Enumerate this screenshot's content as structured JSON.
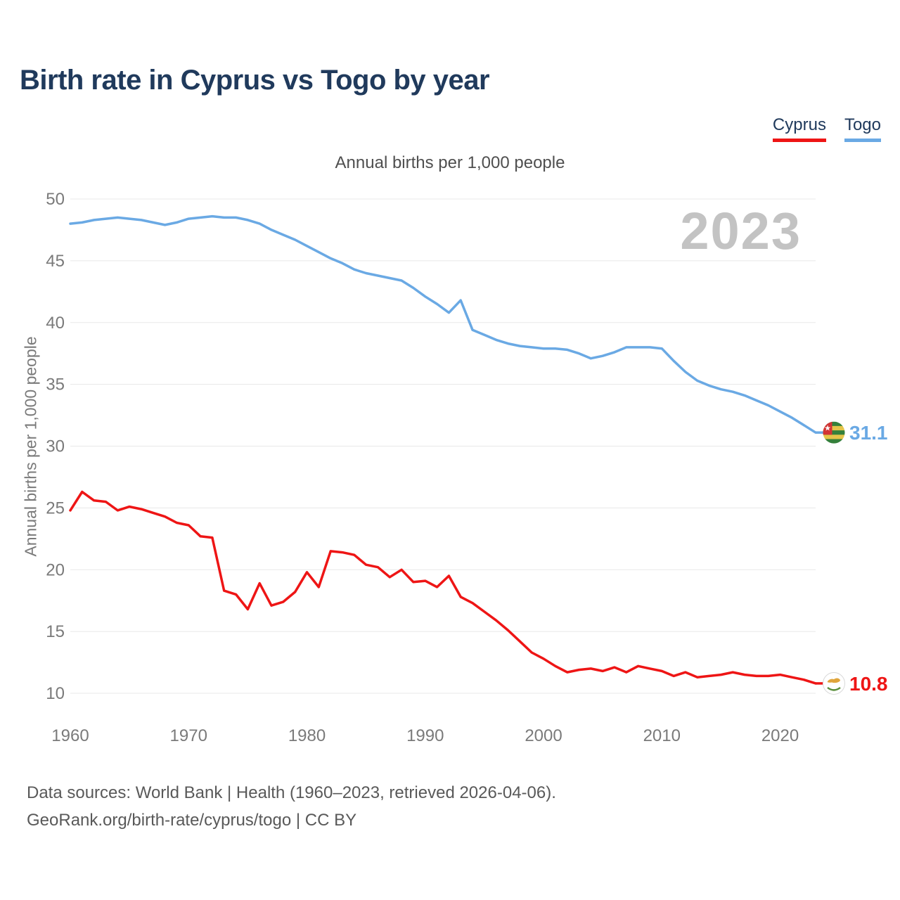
{
  "header": {
    "title": "Birth rate in Cyprus vs Togo by year"
  },
  "legend": {
    "items": [
      {
        "label": "Cyprus",
        "color": "#ee1515"
      },
      {
        "label": "Togo",
        "color": "#6aa9e4"
      }
    ]
  },
  "chart_data": {
    "type": "line",
    "title": "Annual births per 1,000 people",
    "ylabel": "Annual births per 1,000 people",
    "xlabel": "",
    "watermark": "2023",
    "grid": "horizontal",
    "legend_position": "top-right",
    "x_range": [
      1960,
      2023
    ],
    "x_ticks": [
      1960,
      1970,
      1980,
      1990,
      2000,
      2010,
      2020
    ],
    "ylim": [
      10,
      50
    ],
    "y_ticks": [
      10,
      15,
      20,
      25,
      30,
      35,
      40,
      45,
      50
    ],
    "years_start": 1960,
    "series": [
      {
        "name": "Togo",
        "color": "#6aa9e4",
        "end_label": "31.1",
        "flag": "togo",
        "values": [
          48.0,
          48.1,
          48.3,
          48.4,
          48.5,
          48.4,
          48.3,
          48.1,
          47.9,
          48.1,
          48.4,
          48.5,
          48.6,
          48.5,
          48.5,
          48.3,
          48.0,
          47.5,
          47.1,
          46.7,
          46.2,
          45.7,
          45.2,
          44.8,
          44.3,
          44.0,
          43.8,
          43.6,
          43.4,
          42.8,
          42.1,
          41.5,
          40.8,
          41.8,
          39.4,
          39.0,
          38.6,
          38.3,
          38.1,
          38.0,
          37.9,
          37.9,
          37.8,
          37.5,
          37.1,
          37.3,
          37.6,
          38.0,
          38.0,
          38.0,
          37.9,
          36.9,
          36.0,
          35.3,
          34.9,
          34.6,
          34.4,
          34.1,
          33.7,
          33.3,
          32.8,
          32.3,
          31.7,
          31.1
        ]
      },
      {
        "name": "Cyprus",
        "color": "#ee1515",
        "end_label": "10.8",
        "flag": "cyprus",
        "values": [
          24.8,
          26.3,
          25.6,
          25.5,
          24.8,
          25.1,
          24.9,
          24.6,
          24.3,
          23.8,
          23.6,
          22.7,
          22.6,
          18.3,
          18.0,
          16.8,
          18.9,
          17.1,
          17.4,
          18.2,
          19.8,
          18.6,
          21.5,
          21.4,
          21.2,
          20.4,
          20.2,
          19.4,
          20.0,
          19.0,
          19.1,
          18.6,
          19.5,
          17.8,
          17.3,
          16.6,
          15.9,
          15.1,
          14.2,
          13.3,
          12.8,
          12.2,
          11.7,
          11.9,
          12.0,
          11.8,
          12.1,
          11.7,
          12.2,
          12.0,
          11.8,
          11.4,
          11.7,
          11.3,
          11.4,
          11.5,
          11.7,
          11.5,
          11.4,
          11.4,
          11.5,
          11.3,
          11.1,
          10.8
        ]
      }
    ],
    "colors": {
      "grid": "#e8e8e8",
      "tick": "#7a7a7a",
      "title": "#203a5c",
      "watermark": "#c3c3c3",
      "togo_flag_green": "#35803b",
      "togo_flag_yellow": "#e5c449",
      "togo_flag_red": "#d23434",
      "cyprus_flag_copper": "#e0a53c",
      "cyprus_flag_green": "#5a8f3c"
    }
  },
  "footer": {
    "line1": "Data sources: World Bank | Health (1960–2023, retrieved 2026-04-06).",
    "line2": "GeoRank.org/birth-rate/cyprus/togo | CC BY"
  }
}
